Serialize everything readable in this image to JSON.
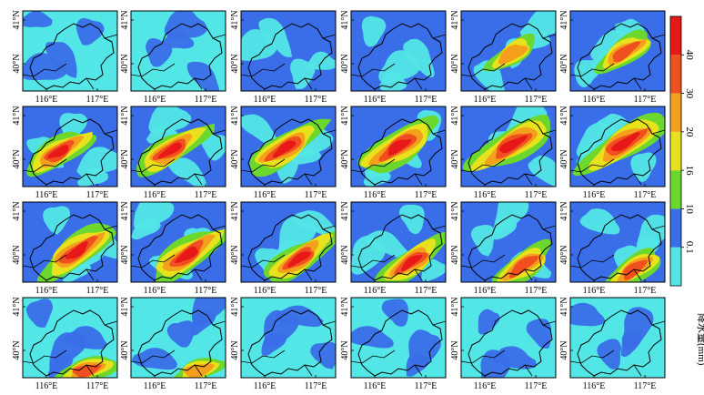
{
  "panel_count": 24,
  "columns": 6,
  "rows": 4,
  "lat_labels": [
    "41°N",
    "40°N"
  ],
  "lon_labels": [
    "116°E",
    "117°E"
  ],
  "colorbar": {
    "title": "降水量(mm)",
    "ticks": [
      "0.1",
      "10",
      "16",
      "20",
      "30",
      "40"
    ],
    "colors": [
      "#52e6e6",
      "#3a6ee8",
      "#6cd82e",
      "#e8e21c",
      "#f4a01c",
      "#f05020",
      "#e81818"
    ]
  },
  "panels": [
    {
      "name": "panel-01",
      "intensity": 0.05
    },
    {
      "name": "panel-02",
      "intensity": 0.05
    },
    {
      "name": "panel-03",
      "intensity": 0.1
    },
    {
      "name": "panel-04",
      "intensity": 0.1
    },
    {
      "name": "panel-05",
      "intensity": 0.25
    },
    {
      "name": "panel-06",
      "intensity": 0.4
    },
    {
      "name": "panel-07",
      "intensity": 0.55
    },
    {
      "name": "panel-08",
      "intensity": 0.6
    },
    {
      "name": "panel-09",
      "intensity": 0.65
    },
    {
      "name": "panel-10",
      "intensity": 0.75
    },
    {
      "name": "panel-11",
      "intensity": 0.8
    },
    {
      "name": "panel-12",
      "intensity": 0.8
    },
    {
      "name": "panel-13",
      "intensity": 0.7
    },
    {
      "name": "panel-14",
      "intensity": 0.7
    },
    {
      "name": "panel-15",
      "intensity": 0.6
    },
    {
      "name": "panel-16",
      "intensity": 0.55
    },
    {
      "name": "panel-17",
      "intensity": 0.45
    },
    {
      "name": "panel-18",
      "intensity": 0.4
    },
    {
      "name": "panel-19",
      "intensity": 0.35
    },
    {
      "name": "panel-20",
      "intensity": 0.2
    },
    {
      "name": "panel-21",
      "intensity": 0.1
    },
    {
      "name": "panel-22",
      "intensity": 0.1
    },
    {
      "name": "panel-23",
      "intensity": 0.05
    },
    {
      "name": "panel-24",
      "intensity": 0.05
    }
  ]
}
